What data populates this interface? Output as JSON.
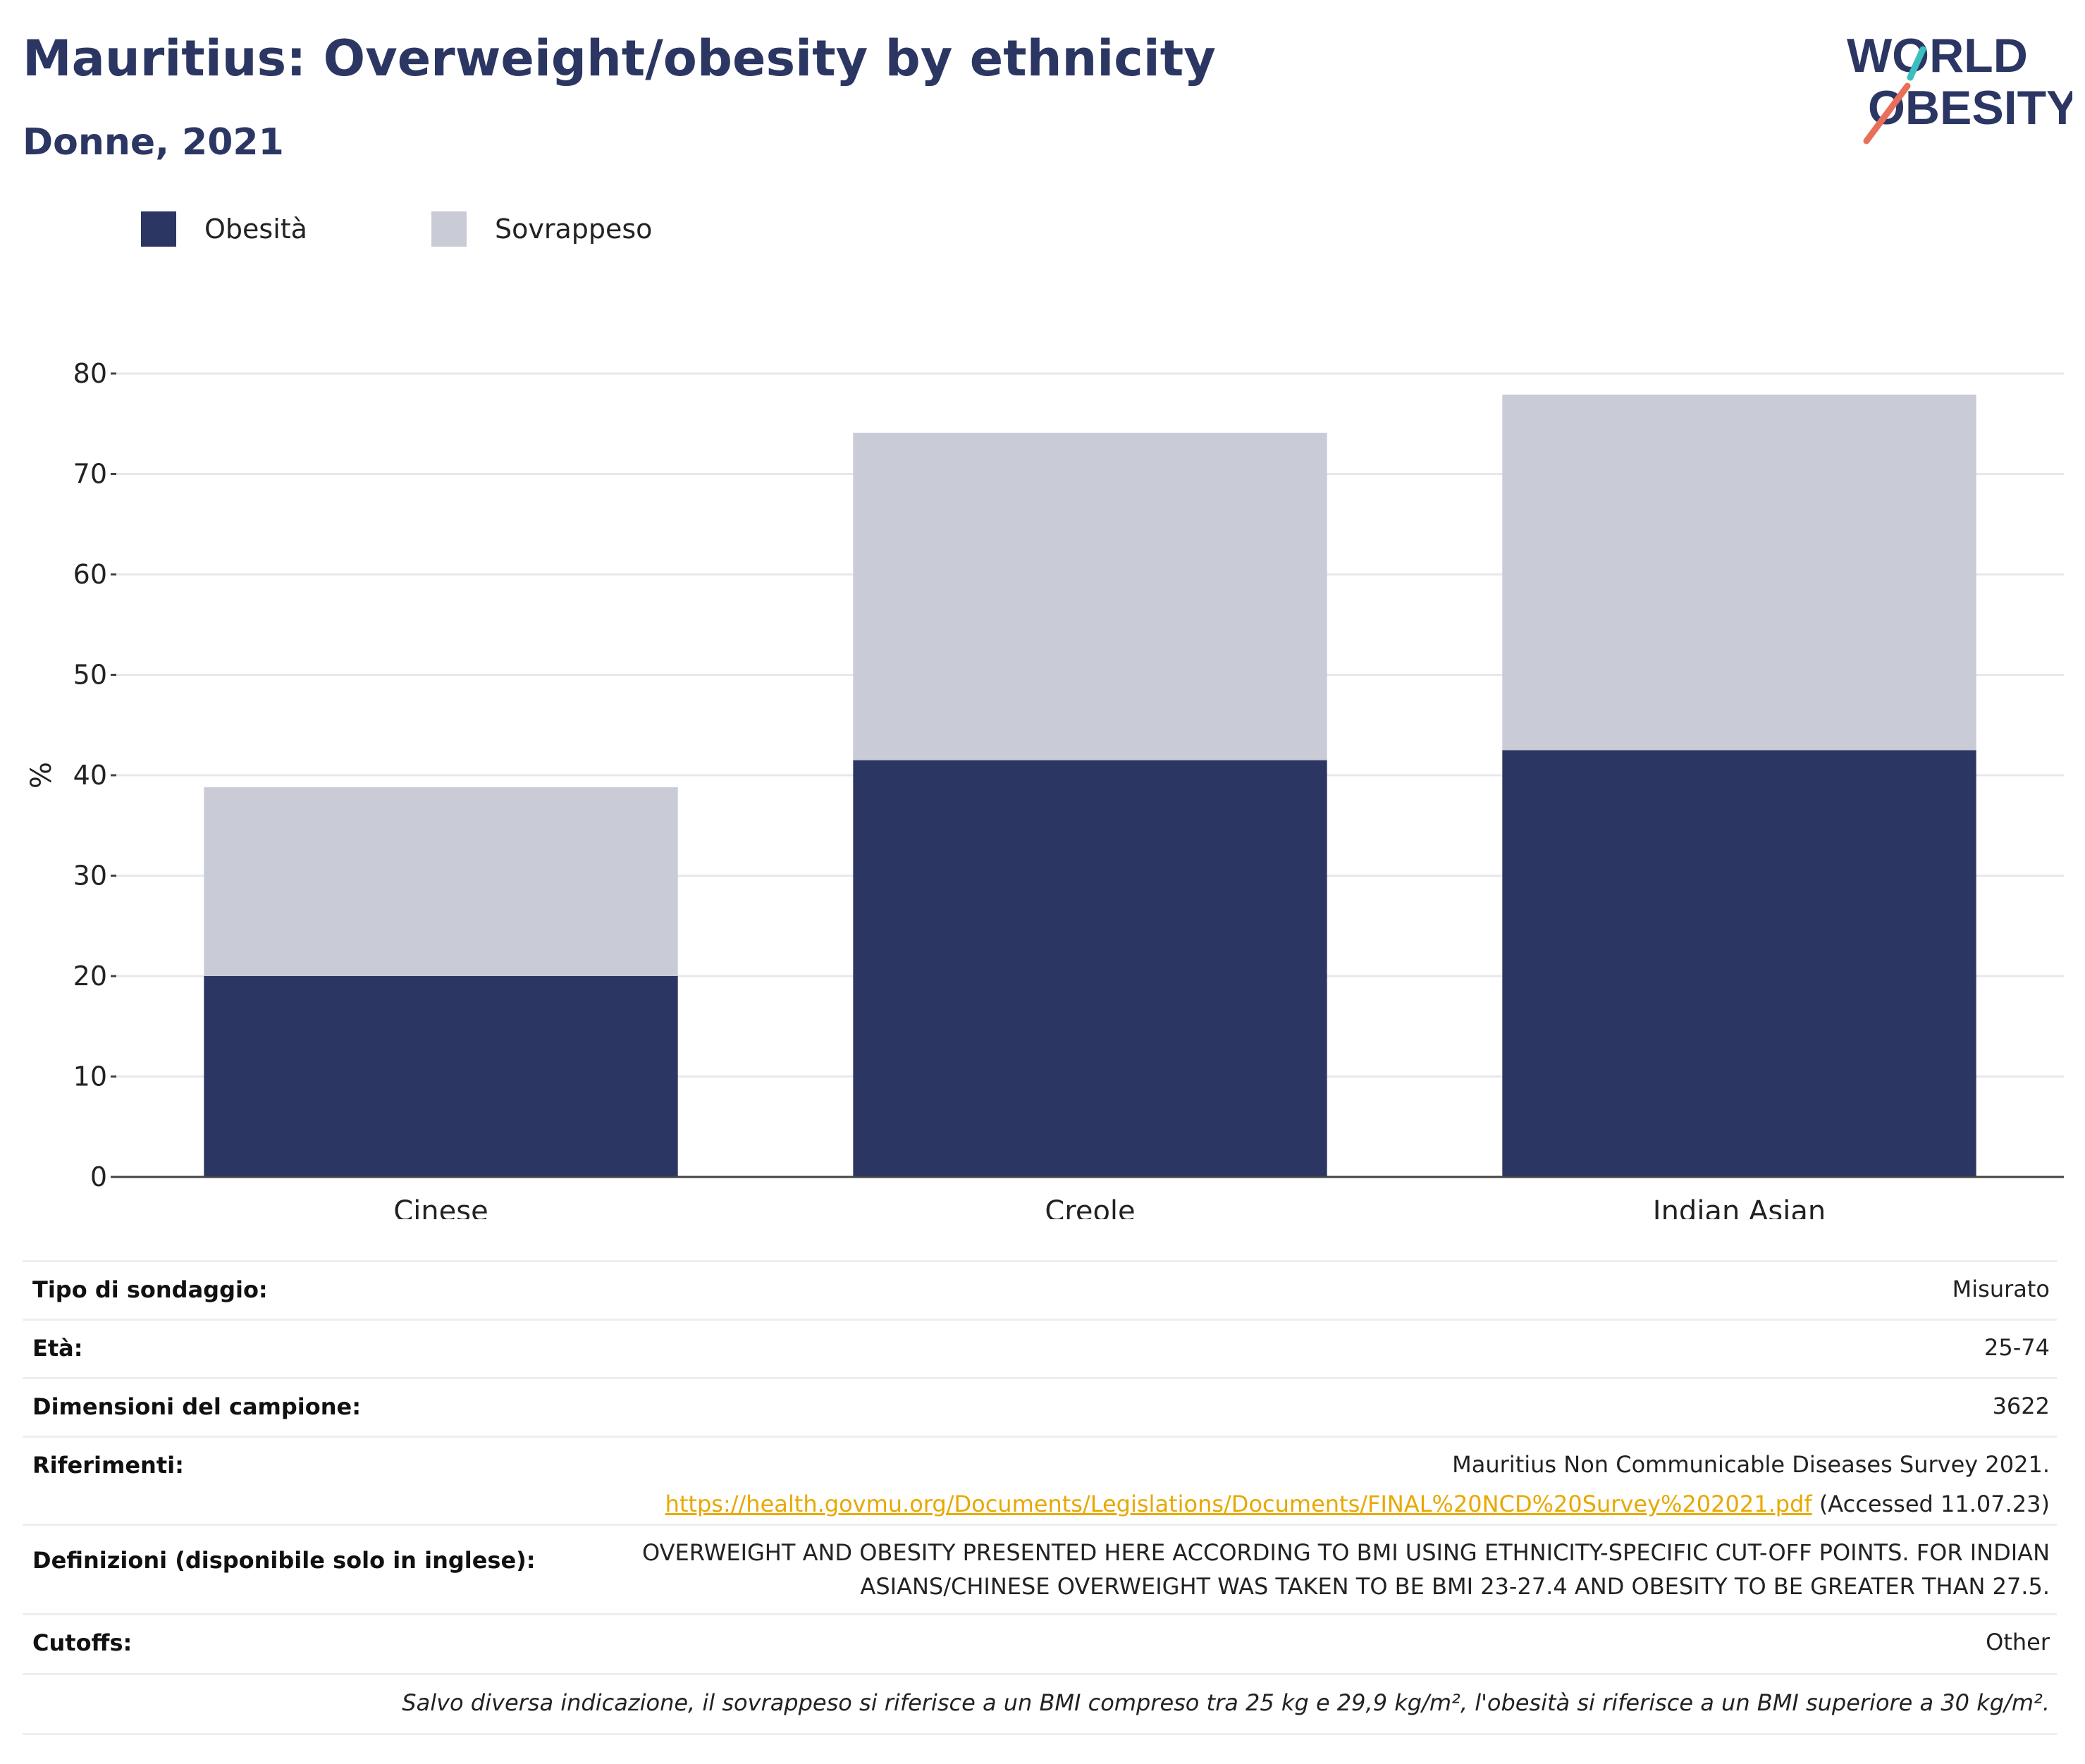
{
  "header": {
    "title": "Mauritius: Overweight/obesity by ethnicity",
    "subtitle": "Donne, 2021"
  },
  "logo": {
    "line1": "WORLD",
    "line2": "OBESITY",
    "slash_colors": [
      "#3bbfbf",
      "#e8705a"
    ],
    "text_color": "#2b3663"
  },
  "legend": [
    {
      "label": "Obesità",
      "color": "#2b3663"
    },
    {
      "label": "Sovrappeso",
      "color": "#c9cbd6"
    }
  ],
  "chart_data": {
    "type": "bar",
    "stacked": true,
    "categories": [
      "Cinese",
      "Creole",
      "Indian Asian"
    ],
    "series": [
      {
        "name": "Obesità",
        "values": [
          20.0,
          41.5,
          42.5
        ],
        "color": "#2b3663"
      },
      {
        "name": "Sovrappeso",
        "values": [
          18.8,
          32.6,
          35.4
        ],
        "color": "#c9cbd6"
      }
    ],
    "ylabel": "%",
    "ylim": [
      0,
      80
    ],
    "yticks": [
      0,
      10,
      20,
      30,
      40,
      50,
      60,
      70,
      80
    ],
    "grid": true,
    "legend_position": "top-left"
  },
  "info": {
    "rows": [
      {
        "label": "Tipo di sondaggio:",
        "value": "Misurato"
      },
      {
        "label": "Età:",
        "value": "25-74"
      },
      {
        "label": "Dimensioni del campione:",
        "value": "3622"
      }
    ],
    "references": {
      "label": "Riferimenti:",
      "line1": "Mauritius Non Communicable Diseases Survey 2021.",
      "link": "https://health.govmu.org/Documents/Legislations/Documents/FINAL%20NCD%20Survey%202021.pdf",
      "accessed": "(Accessed 11.07.23)"
    },
    "definitions": {
      "label": "Definizioni (disponibile solo in inglese):",
      "line1": "OVERWEIGHT AND OBESITY PRESENTED HERE ACCORDING TO BMI USING ETHNICITY-SPECIFIC CUT-OFF POINTS. FOR INDIAN",
      "line2": "ASIANS/CHINESE OVERWEIGHT WAS TAKEN TO BE BMI 23-27.4 AND OBESITY TO BE GREATER THAN 27.5."
    },
    "cutoffs": {
      "label": "Cutoffs:",
      "value": "Other"
    },
    "note": "Salvo diversa indicazione, il sovrappeso si riferisce a un BMI compreso tra 25 kg e 29,9 kg/m², l'obesità si riferisce a un BMI superiore a 30 kg/m²."
  }
}
